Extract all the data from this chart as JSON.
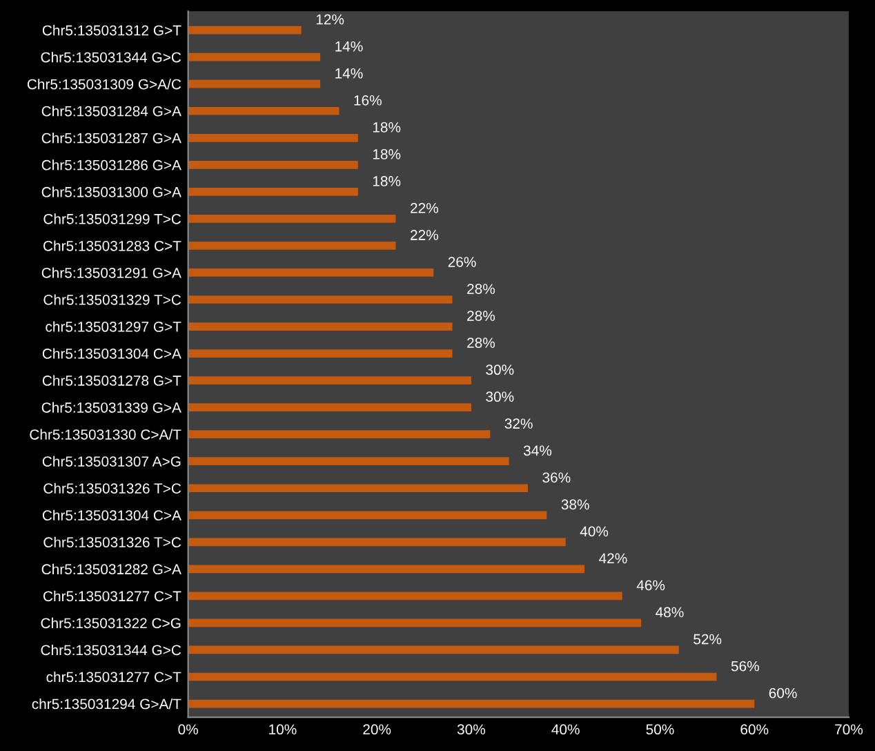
{
  "chart_data": {
    "type": "bar",
    "orientation": "horizontal",
    "categories": [
      "Chr5:135031312 G>T",
      "Chr5:135031344 G>C",
      "Chr5:135031309 G>A/C",
      "Chr5:135031284 G>A",
      "Chr5:135031287 G>A",
      "Chr5:135031286 G>A",
      "Chr5:135031300 G>A",
      "Chr5:135031299 T>C",
      "Chr5:135031283 C>T",
      "Chr5:135031291 G>A",
      "Chr5:135031329 T>C",
      "chr5:135031297 G>T",
      "Chr5:135031304 C>A",
      "Chr5:135031278 G>T",
      "Chr5:135031339 G>A",
      "Chr5:135031330 C>A/T",
      "Chr5:135031307 A>G",
      "Chr5:135031326 T>C",
      "Chr5:135031304 C>A",
      "Chr5:135031326 T>C",
      "Chr5:135031282 G>A",
      "Chr5:135031277 C>T",
      "Chr5:135031322 C>G",
      "Chr5:135031344 G>C",
      "chr5:135031277 C>T",
      "chr5:135031294 G>A/T"
    ],
    "values": [
      12,
      14,
      14,
      16,
      18,
      18,
      18,
      22,
      22,
      26,
      28,
      28,
      28,
      30,
      30,
      32,
      34,
      36,
      38,
      40,
      42,
      46,
      48,
      52,
      56,
      60
    ],
    "value_labels": [
      "12%",
      "14%",
      "14%",
      "16%",
      "18%",
      "18%",
      "18%",
      "22%",
      "22%",
      "26%",
      "28%",
      "28%",
      "28%",
      "30%",
      "30%",
      "32%",
      "34%",
      "36%",
      "38%",
      "40%",
      "42%",
      "46%",
      "48%",
      "52%",
      "56%",
      "60%"
    ],
    "color": "#c55a11",
    "xlim": [
      0,
      70
    ],
    "xticks": [
      {
        "value": 0,
        "label": "0%"
      },
      {
        "value": 10,
        "label": "10%"
      },
      {
        "value": 20,
        "label": "20%"
      },
      {
        "value": 30,
        "label": "30%"
      },
      {
        "value": 40,
        "label": "40%"
      },
      {
        "value": 50,
        "label": "50%"
      },
      {
        "value": 60,
        "label": "60%"
      },
      {
        "value": 70,
        "label": "70%"
      }
    ],
    "grid": false,
    "legend": false
  }
}
